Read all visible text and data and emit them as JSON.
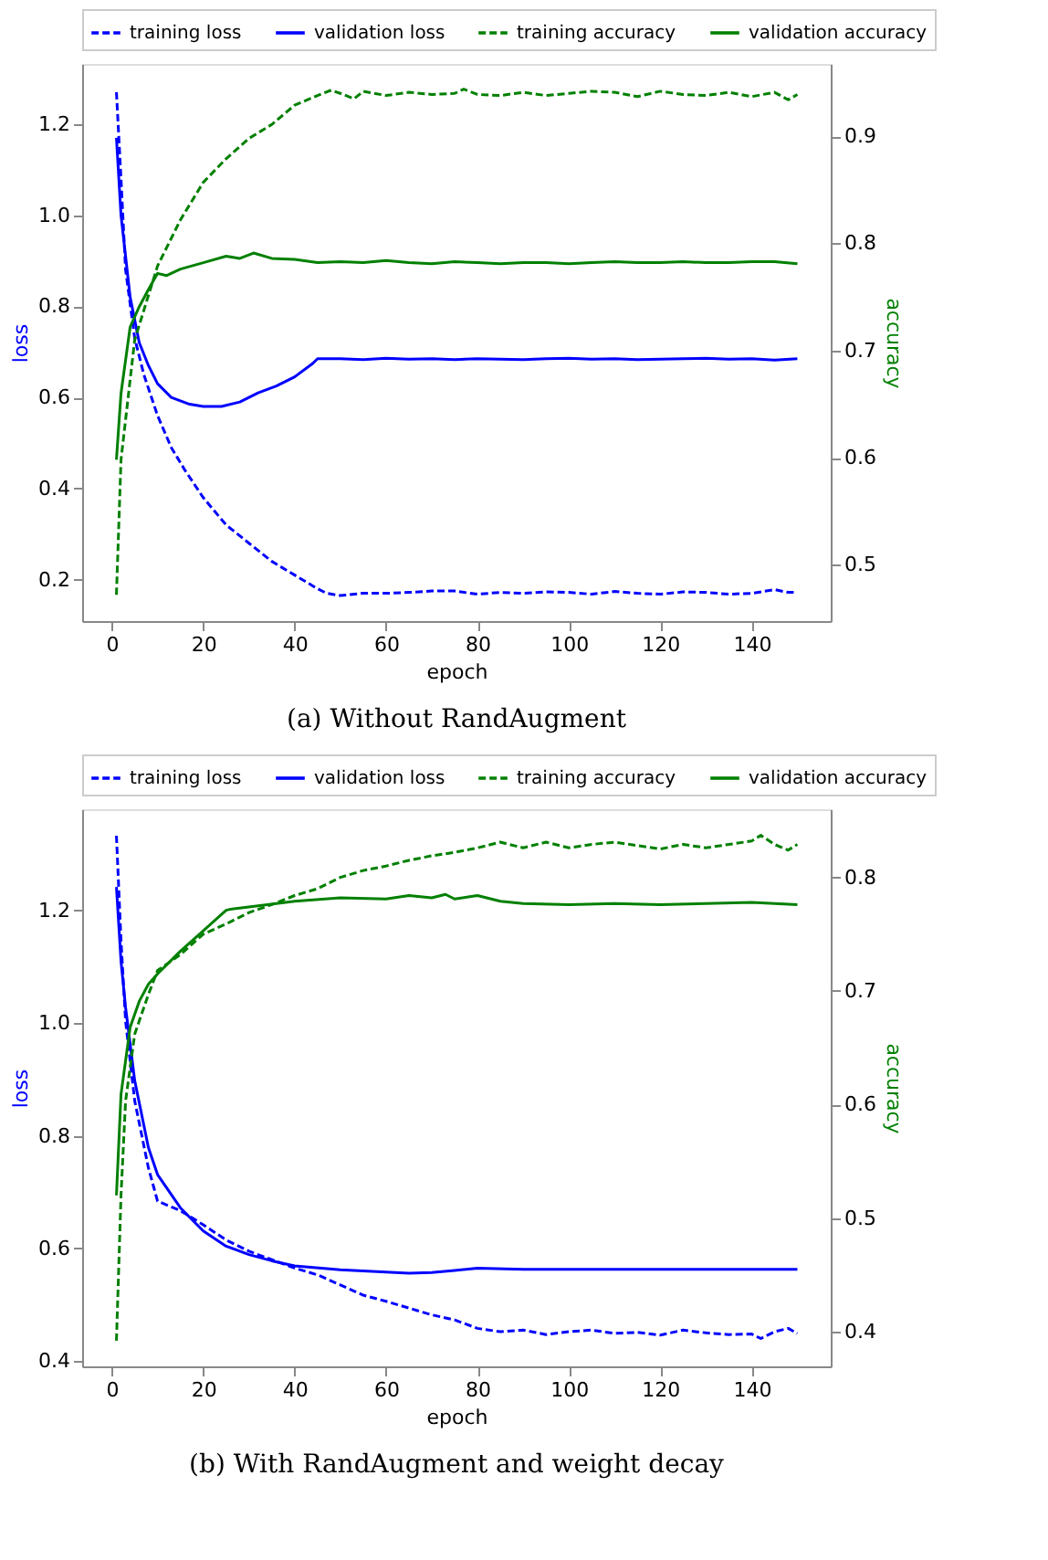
{
  "chart_data": [
    {
      "type": "line",
      "title": "(a) Without RandAugment",
      "xlabel": "epoch",
      "ylabel": "loss",
      "y2label": "accuracy",
      "xlim": [
        -6.5,
        157.3
      ],
      "xticks": [
        0,
        20,
        40,
        60,
        80,
        100,
        120,
        140
      ],
      "ylim": [
        0.109,
        1.332
      ],
      "yticks": [
        0.2,
        0.4,
        0.6,
        0.8,
        {
          "value": 1,
          "label": "1.0"
        },
        1.2
      ],
      "y2lim": [
        0.4475,
        0.9675
      ],
      "y2ticks": [
        0.5,
        0.6,
        0.7,
        0.8,
        0.9
      ],
      "legend": "top",
      "grid": false,
      "series": [
        {
          "name": "training loss",
          "color": "#0000ff",
          "line_style": "dashed",
          "x": [
            1,
            2,
            3,
            5,
            7,
            10,
            13,
            16,
            20,
            25,
            30,
            35,
            40,
            45,
            47,
            50,
            55,
            60,
            65,
            70,
            75,
            80,
            85,
            90,
            95,
            100,
            105,
            110,
            115,
            120,
            125,
            130,
            135,
            140,
            145,
            148,
            150
          ],
          "values": [
            1.27,
            1.08,
            0.88,
            0.73,
            0.65,
            0.56,
            0.49,
            0.44,
            0.38,
            0.32,
            0.28,
            0.24,
            0.21,
            0.18,
            0.17,
            0.165,
            0.17,
            0.17,
            0.172,
            0.175,
            0.175,
            0.168,
            0.172,
            0.17,
            0.173,
            0.172,
            0.168,
            0.174,
            0.17,
            0.168,
            0.173,
            0.172,
            0.168,
            0.17,
            0.178,
            0.172,
            0.172
          ]
        },
        {
          "name": "validation loss",
          "color": "#0000ff",
          "line_style": "solid",
          "x": [
            1,
            2,
            4,
            6,
            8,
            10,
            13,
            17,
            20,
            24,
            28,
            32,
            36,
            40,
            44,
            45,
            50,
            55,
            60,
            65,
            70,
            75,
            80,
            85,
            90,
            95,
            100,
            105,
            110,
            115,
            120,
            125,
            130,
            135,
            140,
            145,
            150
          ],
          "values": [
            1.17,
            1.0,
            0.82,
            0.72,
            0.67,
            0.63,
            0.6,
            0.585,
            0.58,
            0.58,
            0.59,
            0.61,
            0.625,
            0.645,
            0.675,
            0.685,
            0.685,
            0.683,
            0.686,
            0.684,
            0.685,
            0.683,
            0.685,
            0.684,
            0.683,
            0.685,
            0.686,
            0.684,
            0.685,
            0.683,
            0.684,
            0.685,
            0.686,
            0.684,
            0.685,
            0.682,
            0.685
          ]
        },
        {
          "name": "training accuracy",
          "color": "#008000",
          "line_style": "dashed",
          "axis": "y2",
          "x": [
            1,
            2,
            5,
            10,
            15,
            20,
            25,
            30,
            35,
            40,
            45,
            48,
            50,
            53,
            55,
            60,
            65,
            70,
            75,
            77,
            80,
            85,
            90,
            95,
            100,
            105,
            110,
            115,
            120,
            125,
            130,
            135,
            140,
            145,
            148,
            150
          ],
          "values": [
            0.472,
            0.598,
            0.71,
            0.779,
            0.822,
            0.857,
            0.879,
            0.898,
            0.911,
            0.929,
            0.938,
            0.943,
            0.94,
            0.935,
            0.942,
            0.938,
            0.941,
            0.939,
            0.94,
            0.944,
            0.939,
            0.938,
            0.941,
            0.938,
            0.94,
            0.942,
            0.941,
            0.937,
            0.942,
            0.939,
            0.938,
            0.941,
            0.937,
            0.941,
            0.934,
            0.939
          ]
        },
        {
          "name": "validation accuracy",
          "color": "#008000",
          "line_style": "solid",
          "axis": "y2",
          "x": [
            1,
            2,
            4,
            6,
            8,
            10,
            12,
            15,
            20,
            25,
            28,
            31,
            35,
            40,
            45,
            50,
            55,
            60,
            65,
            70,
            75,
            80,
            85,
            90,
            95,
            100,
            105,
            110,
            115,
            120,
            125,
            130,
            135,
            140,
            145,
            150
          ],
          "values": [
            0.598,
            0.66,
            0.722,
            0.741,
            0.757,
            0.772,
            0.77,
            0.776,
            0.782,
            0.788,
            0.786,
            0.791,
            0.786,
            0.785,
            0.782,
            0.783,
            0.782,
            0.784,
            0.782,
            0.781,
            0.783,
            0.782,
            0.781,
            0.782,
            0.782,
            0.781,
            0.782,
            0.783,
            0.782,
            0.782,
            0.783,
            0.782,
            0.782,
            0.783,
            0.783,
            0.781
          ]
        }
      ]
    },
    {
      "type": "line",
      "title": "(b) With RandAugment and weight decay",
      "xlabel": "epoch",
      "ylabel": "loss",
      "y2label": "accuracy",
      "xlim": [
        -6.5,
        157.3
      ],
      "xticks": [
        0,
        20,
        40,
        60,
        80,
        100,
        120,
        140
      ],
      "ylim": [
        0.3905,
        1.38
      ],
      "yticks": [
        0.4,
        0.6,
        0.8,
        {
          "value": 1,
          "label": "1.0"
        },
        1.2
      ],
      "y2lim": [
        0.3694,
        0.86
      ],
      "y2ticks": [
        0.4,
        0.5,
        0.6,
        0.7,
        0.8
      ],
      "legend": "top",
      "grid": false,
      "series": [
        {
          "name": "training loss",
          "color": "#0000ff",
          "line_style": "dashed",
          "x": [
            1,
            2,
            3,
            5,
            8,
            10,
            15,
            20,
            25,
            30,
            35,
            40,
            45,
            50,
            55,
            60,
            65,
            70,
            75,
            80,
            85,
            90,
            95,
            100,
            105,
            110,
            115,
            120,
            125,
            130,
            135,
            140,
            142,
            145,
            148,
            150
          ],
          "values": [
            1.333,
            1.147,
            1.004,
            0.862,
            0.743,
            0.684,
            0.667,
            0.642,
            0.615,
            0.595,
            0.58,
            0.565,
            0.553,
            0.535,
            0.517,
            0.506,
            0.494,
            0.482,
            0.473,
            0.458,
            0.452,
            0.455,
            0.447,
            0.452,
            0.455,
            0.449,
            0.451,
            0.446,
            0.455,
            0.45,
            0.447,
            0.448,
            0.44,
            0.452,
            0.458,
            0.449
          ]
        },
        {
          "name": "validation loss",
          "color": "#0000ff",
          "line_style": "solid",
          "x": [
            1,
            2,
            3,
            5,
            8,
            10,
            15,
            20,
            25,
            30,
            35,
            40,
            50,
            60,
            65,
            70,
            75,
            80,
            90,
            100,
            110,
            120,
            130,
            140,
            150
          ],
          "values": [
            1.242,
            1.11,
            1.028,
            0.898,
            0.779,
            0.731,
            0.672,
            0.631,
            0.604,
            0.589,
            0.578,
            0.569,
            0.562,
            0.558,
            0.556,
            0.557,
            0.561,
            0.565,
            0.563,
            0.563,
            0.563,
            0.563,
            0.563,
            0.563,
            0.563
          ]
        },
        {
          "name": "training accuracy",
          "color": "#008000",
          "line_style": "dashed",
          "axis": "y2",
          "x": [
            1,
            2,
            3,
            5,
            8,
            10,
            15,
            20,
            25,
            30,
            35,
            40,
            45,
            50,
            55,
            60,
            65,
            70,
            75,
            80,
            85,
            90,
            95,
            100,
            105,
            110,
            115,
            120,
            125,
            130,
            135,
            140,
            142,
            145,
            148,
            150
          ],
          "values": [
            0.392,
            0.52,
            0.603,
            0.662,
            0.697,
            0.718,
            0.732,
            0.75,
            0.759,
            0.769,
            0.776,
            0.784,
            0.79,
            0.8,
            0.806,
            0.81,
            0.815,
            0.819,
            0.822,
            0.826,
            0.831,
            0.826,
            0.831,
            0.826,
            0.829,
            0.831,
            0.828,
            0.825,
            0.829,
            0.826,
            0.829,
            0.832,
            0.837,
            0.829,
            0.824,
            0.829
          ]
        },
        {
          "name": "validation accuracy",
          "color": "#008000",
          "line_style": "solid",
          "axis": "y2",
          "x": [
            1,
            2,
            4,
            6,
            8,
            10,
            15,
            20,
            25,
            26,
            30,
            40,
            50,
            60,
            65,
            70,
            73,
            75,
            80,
            85,
            90,
            100,
            110,
            120,
            130,
            140,
            150
          ],
          "values": [
            0.52,
            0.609,
            0.668,
            0.691,
            0.706,
            0.715,
            0.735,
            0.753,
            0.771,
            0.772,
            0.774,
            0.779,
            0.782,
            0.781,
            0.784,
            0.782,
            0.785,
            0.781,
            0.784,
            0.779,
            0.777,
            0.776,
            0.777,
            0.776,
            0.777,
            0.778,
            0.776
          ]
        }
      ]
    }
  ]
}
